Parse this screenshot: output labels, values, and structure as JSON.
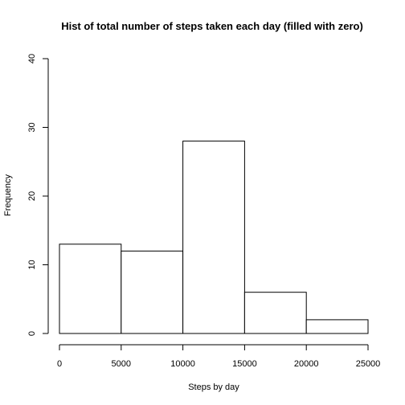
{
  "chart_data": {
    "type": "bar",
    "title": "Hist of total number of steps taken each day (filled with zero)",
    "xlabel": "Steps by day",
    "ylabel": "Frequency",
    "bins": [
      {
        "start": 0,
        "end": 5000,
        "count": 13
      },
      {
        "start": 5000,
        "end": 10000,
        "count": 12
      },
      {
        "start": 10000,
        "end": 15000,
        "count": 28
      },
      {
        "start": 15000,
        "end": 20000,
        "count": 6
      },
      {
        "start": 20000,
        "end": 25000,
        "count": 2
      }
    ],
    "xlim": [
      0,
      25000
    ],
    "ylim": [
      0,
      40
    ],
    "x_ticks": [
      "0",
      "5000",
      "10000",
      "15000",
      "20000",
      "25000"
    ],
    "y_ticks": [
      "0",
      "10",
      "20",
      "30",
      "40"
    ],
    "grid": false,
    "bar_fill": "#ffffff",
    "bar_stroke": "#000000"
  }
}
